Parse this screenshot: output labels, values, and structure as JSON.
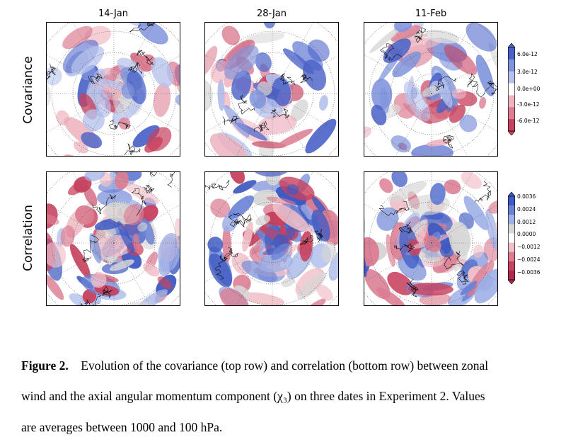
{
  "columns": [
    "14-Jan",
    "28-Jan",
    "11-Feb"
  ],
  "rows": [
    "Covariance",
    "Correlation"
  ],
  "covariance_colorbar": {
    "ticks": [
      "6.0e-12",
      "3.0e-12",
      "0.0e+00",
      "-3.0e-12",
      "-6.0e-12"
    ],
    "colors": [
      "#4a62c8",
      "#7e93dc",
      "#b6c2ec",
      "#ffffff",
      "#eeb3bf",
      "#dc7d92",
      "#c8425f"
    ]
  },
  "correlation_colorbar": {
    "ticks": [
      "0.0036",
      "0.0024",
      "0.0012",
      "0.0000",
      "−0.0012",
      "−0.0024",
      "−0.0036"
    ],
    "colors": [
      "#3e5ac4",
      "#6a82d6",
      "#9fb0e6",
      "#d6d6d6",
      "#ffffff",
      "#f0c0c8",
      "#dc7d92",
      "#c8425f",
      "#b02a4c"
    ]
  },
  "caption": {
    "label": "Figure 2.",
    "line1": "Evolution of the covariance (top row) and correlation (bottom row) between zonal",
    "line2": "wind and the axial angular momentum component (χ₃) on three dates in Experiment 2. Values",
    "line3": "are averages between 1000 and 100 hPa."
  }
}
